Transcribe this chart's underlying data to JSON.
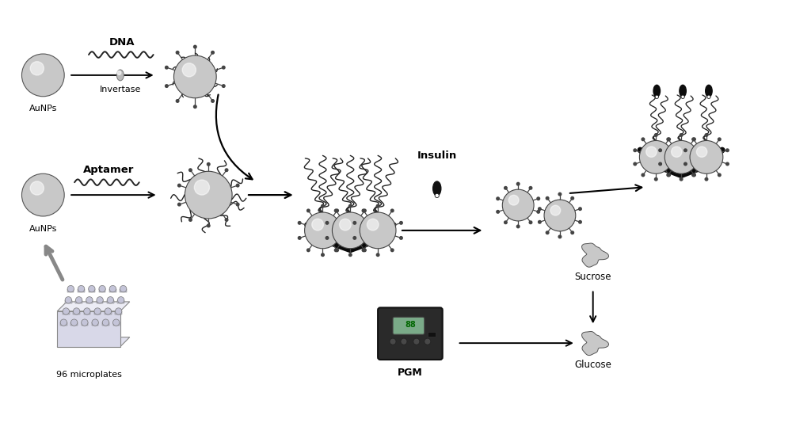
{
  "bg_color": "#ffffff",
  "sphere_color": "#c8c8c8",
  "sphere_edge": "#555555",
  "dark_color": "#111111",
  "labels": {
    "AuNPs_top": "AuNPs",
    "AuNPs_bottom": "AuNPs",
    "DNA": "DNA",
    "Invertase": "Invertase",
    "Aptamer": "Aptamer",
    "microplates": "96 microplates",
    "Insulin": "Insulin",
    "Sucrose": "Sucrose",
    "Glucose": "Glucose",
    "PGM": "PGM"
  },
  "figsize": [
    10.0,
    5.34
  ],
  "dpi": 100
}
